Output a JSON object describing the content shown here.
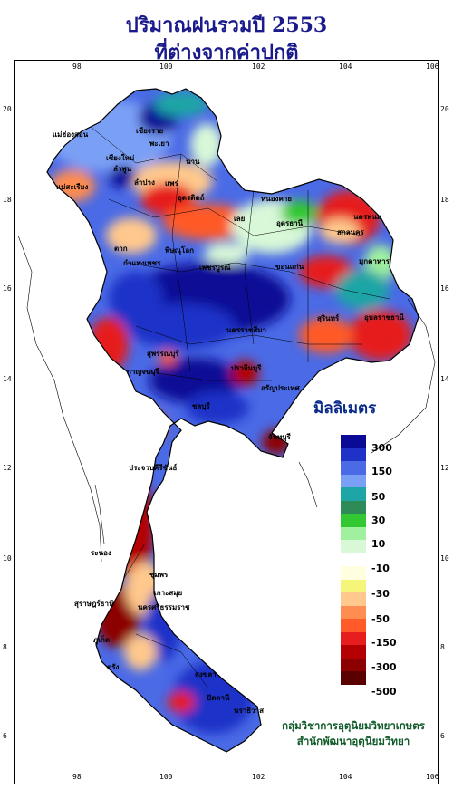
{
  "title_line1": "ปริมาณฝนรวมปี  2553",
  "title_line2": "ที่ต่างจากค่าปกติ",
  "legend": {
    "unit": "มิลลิเมตร",
    "labels": [
      "300",
      "150",
      "50",
      "30",
      "10",
      "-10",
      "-30",
      "-50",
      "-150",
      "-300",
      "-500"
    ],
    "colors": [
      "#0a0a96",
      "#1e32c8",
      "#4a6ae6",
      "#7aa0f5",
      "#1ea5a5",
      "#2e8b57",
      "#32c832",
      "#a0f0a0",
      "#d8f8d8",
      "#ffffff",
      "#ffffe0",
      "#f5f57a",
      "#ffc88c",
      "#ff8c50",
      "#ff5a28",
      "#e61e1e",
      "#b40000",
      "#8c0000",
      "#5a0000"
    ]
  },
  "axes": {
    "lon_ticks": [
      "98",
      "100",
      "102",
      "104",
      "106"
    ],
    "lat_ticks": [
      "20",
      "18",
      "16",
      "14",
      "12",
      "10",
      "8",
      "6"
    ]
  },
  "places": [
    {
      "name": "เชียงราย",
      "c": "p1"
    },
    {
      "name": "แม่ฮ่องสอน",
      "c": "p2"
    },
    {
      "name": "พะเยา",
      "c": "p3"
    },
    {
      "name": "น่าน",
      "c": "p4"
    },
    {
      "name": "เชียงใหม่",
      "c": "p5"
    },
    {
      "name": "ลำพูน",
      "c": "p6"
    },
    {
      "name": "ลำปาง",
      "c": "p7"
    },
    {
      "name": "แพร่",
      "c": "p8"
    },
    {
      "name": "แม่สะเรียง",
      "c": "p9"
    },
    {
      "name": "อุตรดิตถ์",
      "c": "p10"
    },
    {
      "name": "หนองคาย",
      "c": "p11"
    },
    {
      "name": "เลย",
      "c": "p12"
    },
    {
      "name": "อุดรธานี",
      "c": "p13"
    },
    {
      "name": "นครพนม",
      "c": "p14"
    },
    {
      "name": "สกลนคร",
      "c": "p15"
    },
    {
      "name": "ตาก",
      "c": "p16"
    },
    {
      "name": "พิษณุโลก",
      "c": "p17"
    },
    {
      "name": "มุกดาหาร",
      "c": "p18"
    },
    {
      "name": "กำแพงเพชร",
      "c": "p19"
    },
    {
      "name": "เพชรบูรณ์",
      "c": "p20"
    },
    {
      "name": "ขอนแก่น",
      "c": "p21"
    },
    {
      "name": "อุบลราชธานี",
      "c": "p22"
    },
    {
      "name": "นครราชสีมา",
      "c": "p23"
    },
    {
      "name": "สุรินทร์",
      "c": "p24"
    },
    {
      "name": "กาญจนบุรี",
      "c": "p25"
    },
    {
      "name": "สุพรรณบุรี",
      "c": "p26"
    },
    {
      "name": "ปราจีนบุรี",
      "c": "p27"
    },
    {
      "name": "อรัญประเทศ",
      "c": "p28"
    },
    {
      "name": "ชลบุรี",
      "c": "p29"
    },
    {
      "name": "จันทบุรี",
      "c": "p30"
    },
    {
      "name": "ประจวบคีรีขันธ์",
      "c": "p31"
    },
    {
      "name": "ระนอง",
      "c": "p32"
    },
    {
      "name": "ชุมพร",
      "c": "p33"
    },
    {
      "name": "เกาะสมุย",
      "c": "p34"
    },
    {
      "name": "สุราษฎร์ธานี",
      "c": "p35"
    },
    {
      "name": "นครศรีธรรมราช",
      "c": "p36"
    },
    {
      "name": "ภูเก็ต",
      "c": "p37"
    },
    {
      "name": "ตรัง",
      "c": "p38"
    },
    {
      "name": "สงขลา",
      "c": "p39"
    },
    {
      "name": "ปัตตานี",
      "c": "p40"
    },
    {
      "name": "นราธิวาส",
      "c": "p41"
    }
  ],
  "credit_line1": "กลุ่มวิชาการอุตุนิยมวิทยาเกษตร",
  "credit_line2": "สำนักพัฒนาอุตุนิยมวิทยา"
}
